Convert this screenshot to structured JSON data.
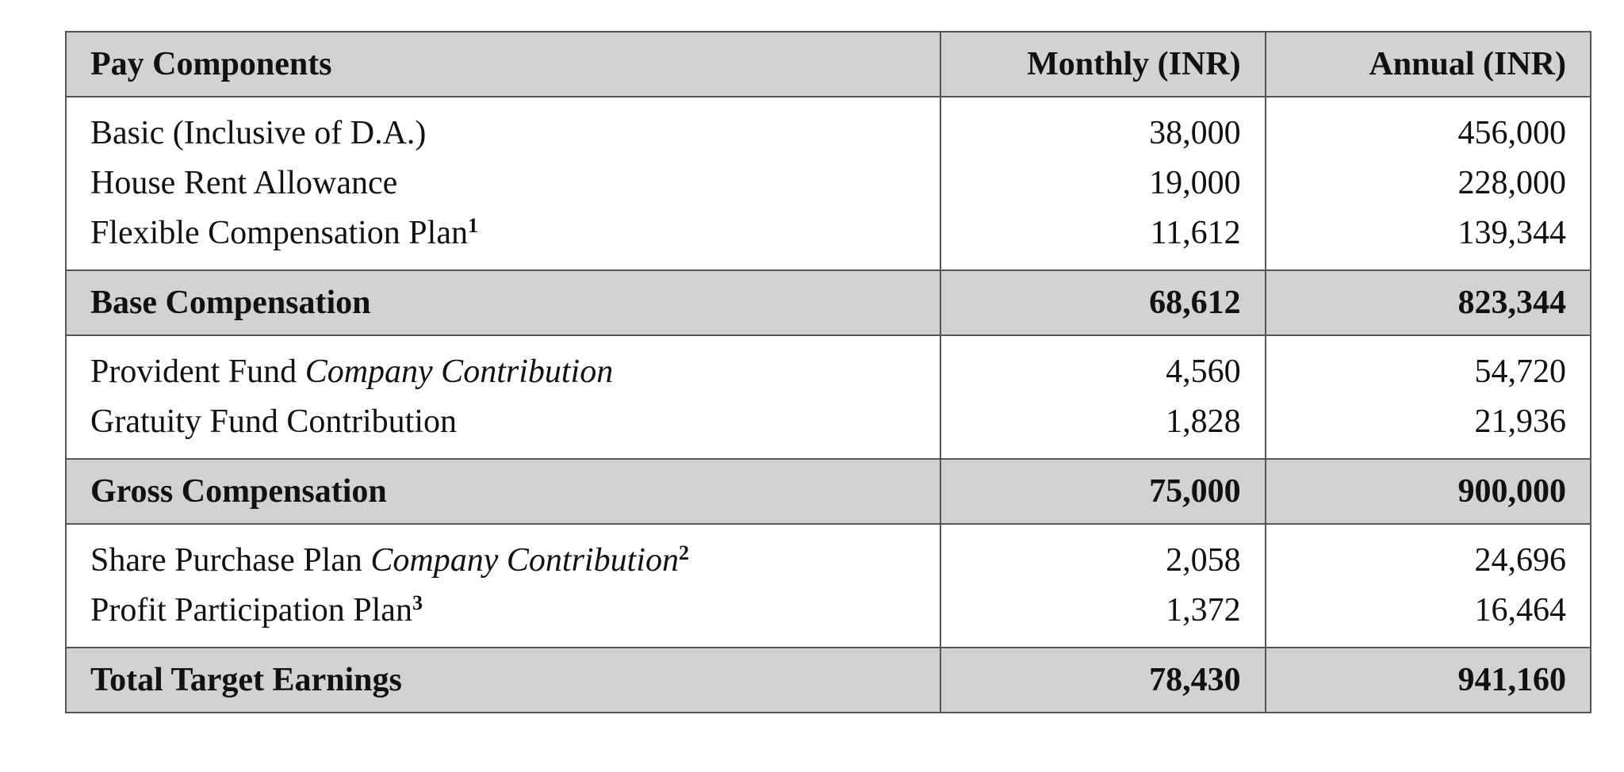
{
  "table": {
    "header": [
      "Pay Components",
      "Monthly (INR)",
      "Annual (INR)"
    ],
    "sections": [
      {
        "rows": [
          {
            "label": "Basic (Inclusive of D.A.)",
            "monthly": "38,000",
            "annual": "456,000"
          },
          {
            "label": "House Rent Allowance",
            "monthly": "19,000",
            "annual": "228,000"
          },
          {
            "label": "Flexible Compensation Plan",
            "note": "1",
            "monthly": "11,612",
            "annual": "139,344"
          }
        ],
        "total": {
          "label": "Base Compensation",
          "monthly": "68,612",
          "annual": "823,344"
        }
      },
      {
        "rows": [
          {
            "label": "Provident Fund",
            "label_italic": "Company Contribution",
            "monthly": "4,560",
            "annual": "54,720"
          },
          {
            "label": "Gratuity Fund Contribution",
            "monthly": "1,828",
            "annual": "21,936"
          }
        ],
        "total": {
          "label": "Gross Compensation",
          "monthly": "75,000",
          "annual": "900,000"
        }
      },
      {
        "rows": [
          {
            "label": "Share Purchase Plan",
            "label_italic": "Company Contribution",
            "note": "2",
            "monthly": "2,058",
            "annual": "24,696"
          },
          {
            "label": "Profit Participation Plan",
            "note": "3",
            "monthly": "1,372",
            "annual": "16,464"
          }
        ],
        "total": {
          "label": "Total Target Earnings",
          "monthly": "78,430",
          "annual": "941,160"
        }
      }
    ]
  }
}
